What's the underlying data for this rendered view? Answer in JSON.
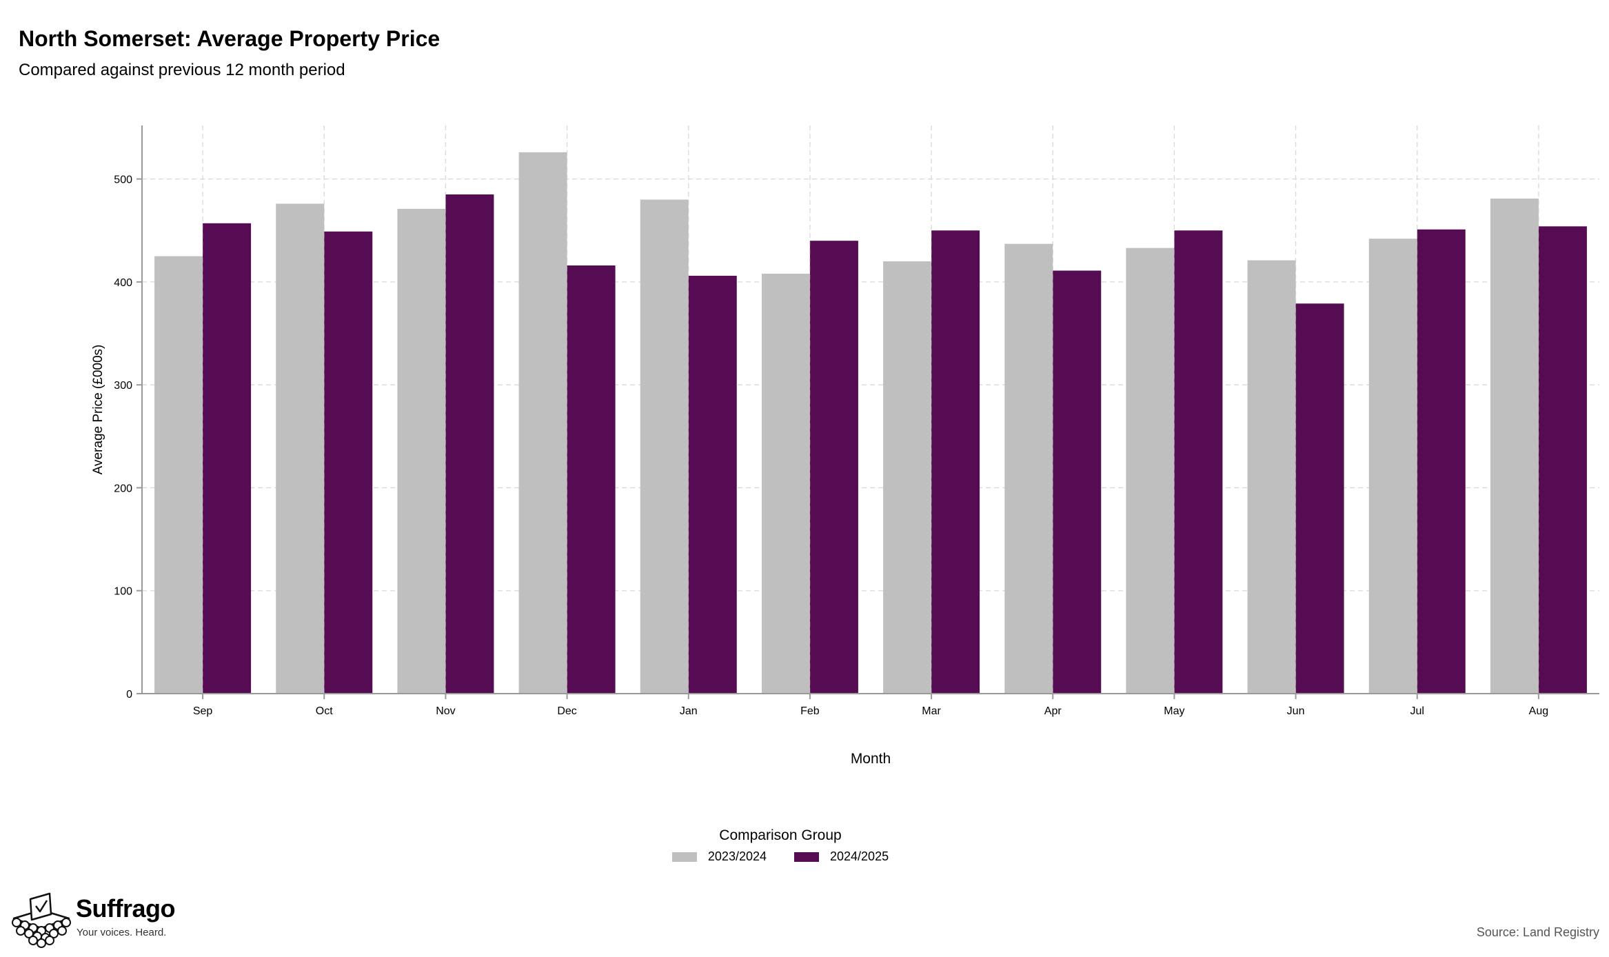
{
  "header": {
    "title": "North Somerset: Average Property Price",
    "subtitle": "Compared against previous 12 month period"
  },
  "chart_data": {
    "type": "bar",
    "categories": [
      "Sep",
      "Oct",
      "Nov",
      "Dec",
      "Jan",
      "Feb",
      "Mar",
      "Apr",
      "May",
      "Jun",
      "Jul",
      "Aug"
    ],
    "series": [
      {
        "name": "2023/2024",
        "color": "#bfbfbf",
        "values": [
          425,
          476,
          471,
          526,
          480,
          408,
          420,
          437,
          433,
          421,
          442,
          481
        ]
      },
      {
        "name": "2024/2025",
        "color": "#560c52",
        "values": [
          457,
          449,
          485,
          416,
          406,
          440,
          450,
          411,
          450,
          379,
          451,
          454
        ]
      }
    ],
    "xlabel": "Month",
    "ylabel": "Average Price (£000s)",
    "ylim": [
      0,
      552
    ],
    "yticks": [
      0,
      100,
      200,
      300,
      400,
      500
    ],
    "grid": true,
    "legend": {
      "title": "Comparison Group",
      "position": "bottom"
    }
  },
  "footer": {
    "brand_name": "Suffrago",
    "brand_tagline": "Your voices. Heard.",
    "source": "Source: Land Registry"
  }
}
